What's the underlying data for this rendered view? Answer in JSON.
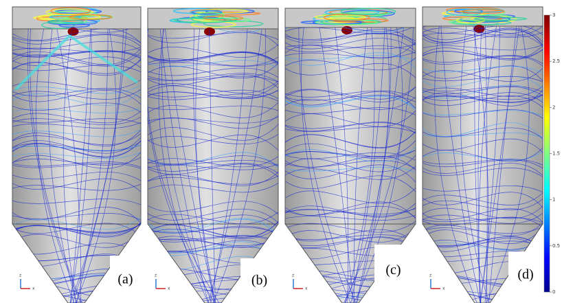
{
  "panels": [
    {
      "label": "(a)",
      "axis_z": "z",
      "axis_x": "x"
    },
    {
      "label": "(b)",
      "axis_z": "z",
      "axis_x": "x"
    },
    {
      "label": "(c)",
      "axis_z": "z",
      "axis_x": "x"
    },
    {
      "label": "(d)",
      "axis_z": "z",
      "axis_x": "x"
    }
  ],
  "colorbar": {
    "range": [
      0,
      3
    ],
    "ticks": [
      0,
      0.5,
      1,
      1.5,
      2,
      2.5,
      3
    ]
  }
}
